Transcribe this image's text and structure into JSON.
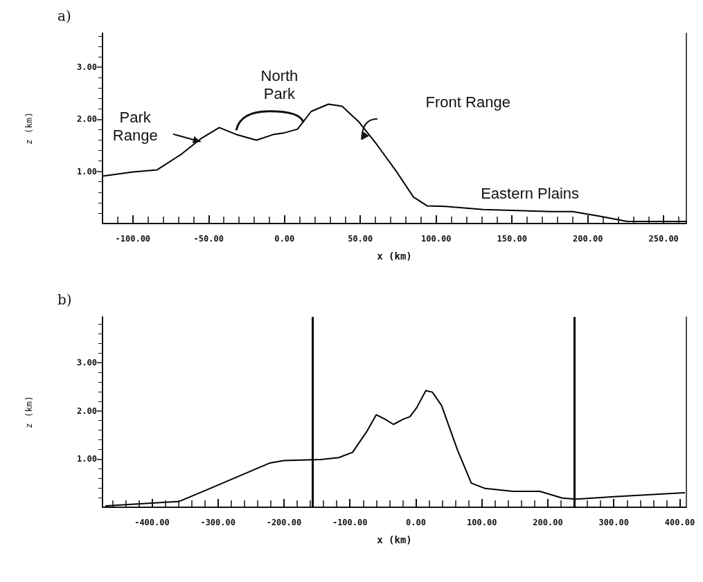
{
  "chart_data": [
    {
      "type": "line",
      "title": "a)",
      "xlabel": "x (km)",
      "ylabel": "z (km)",
      "marker": "none",
      "line_style": "solid",
      "x": [
        -120,
        -100,
        -84,
        -68,
        -55,
        -43,
        -32,
        -18.5,
        -7,
        0,
        8.6,
        17.6,
        29,
        38,
        49,
        60.5,
        74,
        85,
        94,
        106,
        131,
        176,
        190,
        208,
        226,
        265
      ],
      "series": [
        {
          "color": "#000000",
          "values": [
            0.91,
            0.99,
            1.03,
            1.33,
            1.63,
            1.84,
            1.71,
            1.6,
            1.71,
            1.74,
            1.81,
            2.15,
            2.29,
            2.25,
            1.95,
            1.53,
            0.99,
            0.51,
            0.34,
            0.33,
            0.27,
            0.23,
            0.23,
            0.14,
            0.04,
            0.04
          ]
        }
      ],
      "xlim": [
        -120,
        265
      ],
      "ylim": [
        0,
        3.65
      ],
      "xticks": [
        {
          "value": -100,
          "label": "-100.00"
        },
        {
          "value": -50,
          "label": "-50.00"
        },
        {
          "value": 0,
          "label": "0.00"
        },
        {
          "value": 50,
          "label": "50.00"
        },
        {
          "value": 100,
          "label": "100.00"
        },
        {
          "value": 150,
          "label": "150.00"
        },
        {
          "value": 200,
          "label": "200.00"
        },
        {
          "value": 250,
          "label": "250.00"
        }
      ],
      "yticks": [
        {
          "value": 1,
          "label": "1.00"
        },
        {
          "value": 2,
          "label": "2.00"
        },
        {
          "value": 3,
          "label": "3.00"
        }
      ],
      "annotations": [
        "Park\nRange",
        "North\nPark",
        "Front Range",
        "Eastern Plains"
      ]
    },
    {
      "type": "line",
      "title": "b)",
      "xlabel": "x (km)",
      "ylabel": "z (km)",
      "marker": "none",
      "line_style": "solid",
      "x": [
        -470,
        -359,
        -317,
        -269,
        -221,
        -200,
        -144,
        -117,
        -96,
        -75,
        -60,
        -47,
        -34,
        -19,
        -9,
        1.4,
        15,
        25,
        39,
        63,
        84,
        105,
        147,
        188,
        222,
        243,
        300,
        407
      ],
      "series": [
        {
          "color": "#000000",
          "values": [
            0.03,
            0.12,
            0.36,
            0.64,
            0.92,
            0.97,
            0.99,
            1.03,
            1.14,
            1.56,
            1.92,
            1.83,
            1.72,
            1.83,
            1.88,
            2.07,
            2.42,
            2.39,
            2.11,
            1.19,
            0.5,
            0.39,
            0.33,
            0.33,
            0.19,
            0.17,
            0.22,
            0.3
          ]
        }
      ],
      "xlim": [
        -475,
        410
      ],
      "ylim": [
        0,
        3.95
      ],
      "xticks": [
        {
          "value": -400,
          "label": "-400.00"
        },
        {
          "value": -300,
          "label": "-300.00"
        },
        {
          "value": -200,
          "label": "-200.00"
        },
        {
          "value": -100,
          "label": "-100.00"
        },
        {
          "value": 0,
          "label": "0.00"
        },
        {
          "value": 100,
          "label": "100.00"
        },
        {
          "value": 200,
          "label": "200.00"
        },
        {
          "value": 300,
          "label": "300.00"
        },
        {
          "value": 400,
          "label": "400.00"
        }
      ],
      "yticks": [
        {
          "value": 1,
          "label": "1.00"
        },
        {
          "value": 2,
          "label": "2.00"
        },
        {
          "value": 3,
          "label": "3.00"
        }
      ],
      "ref_lines": [
        {
          "axis": "x",
          "value": -157,
          "color": "#000000"
        },
        {
          "axis": "x",
          "value": 240,
          "color": "#000000"
        }
      ]
    }
  ]
}
